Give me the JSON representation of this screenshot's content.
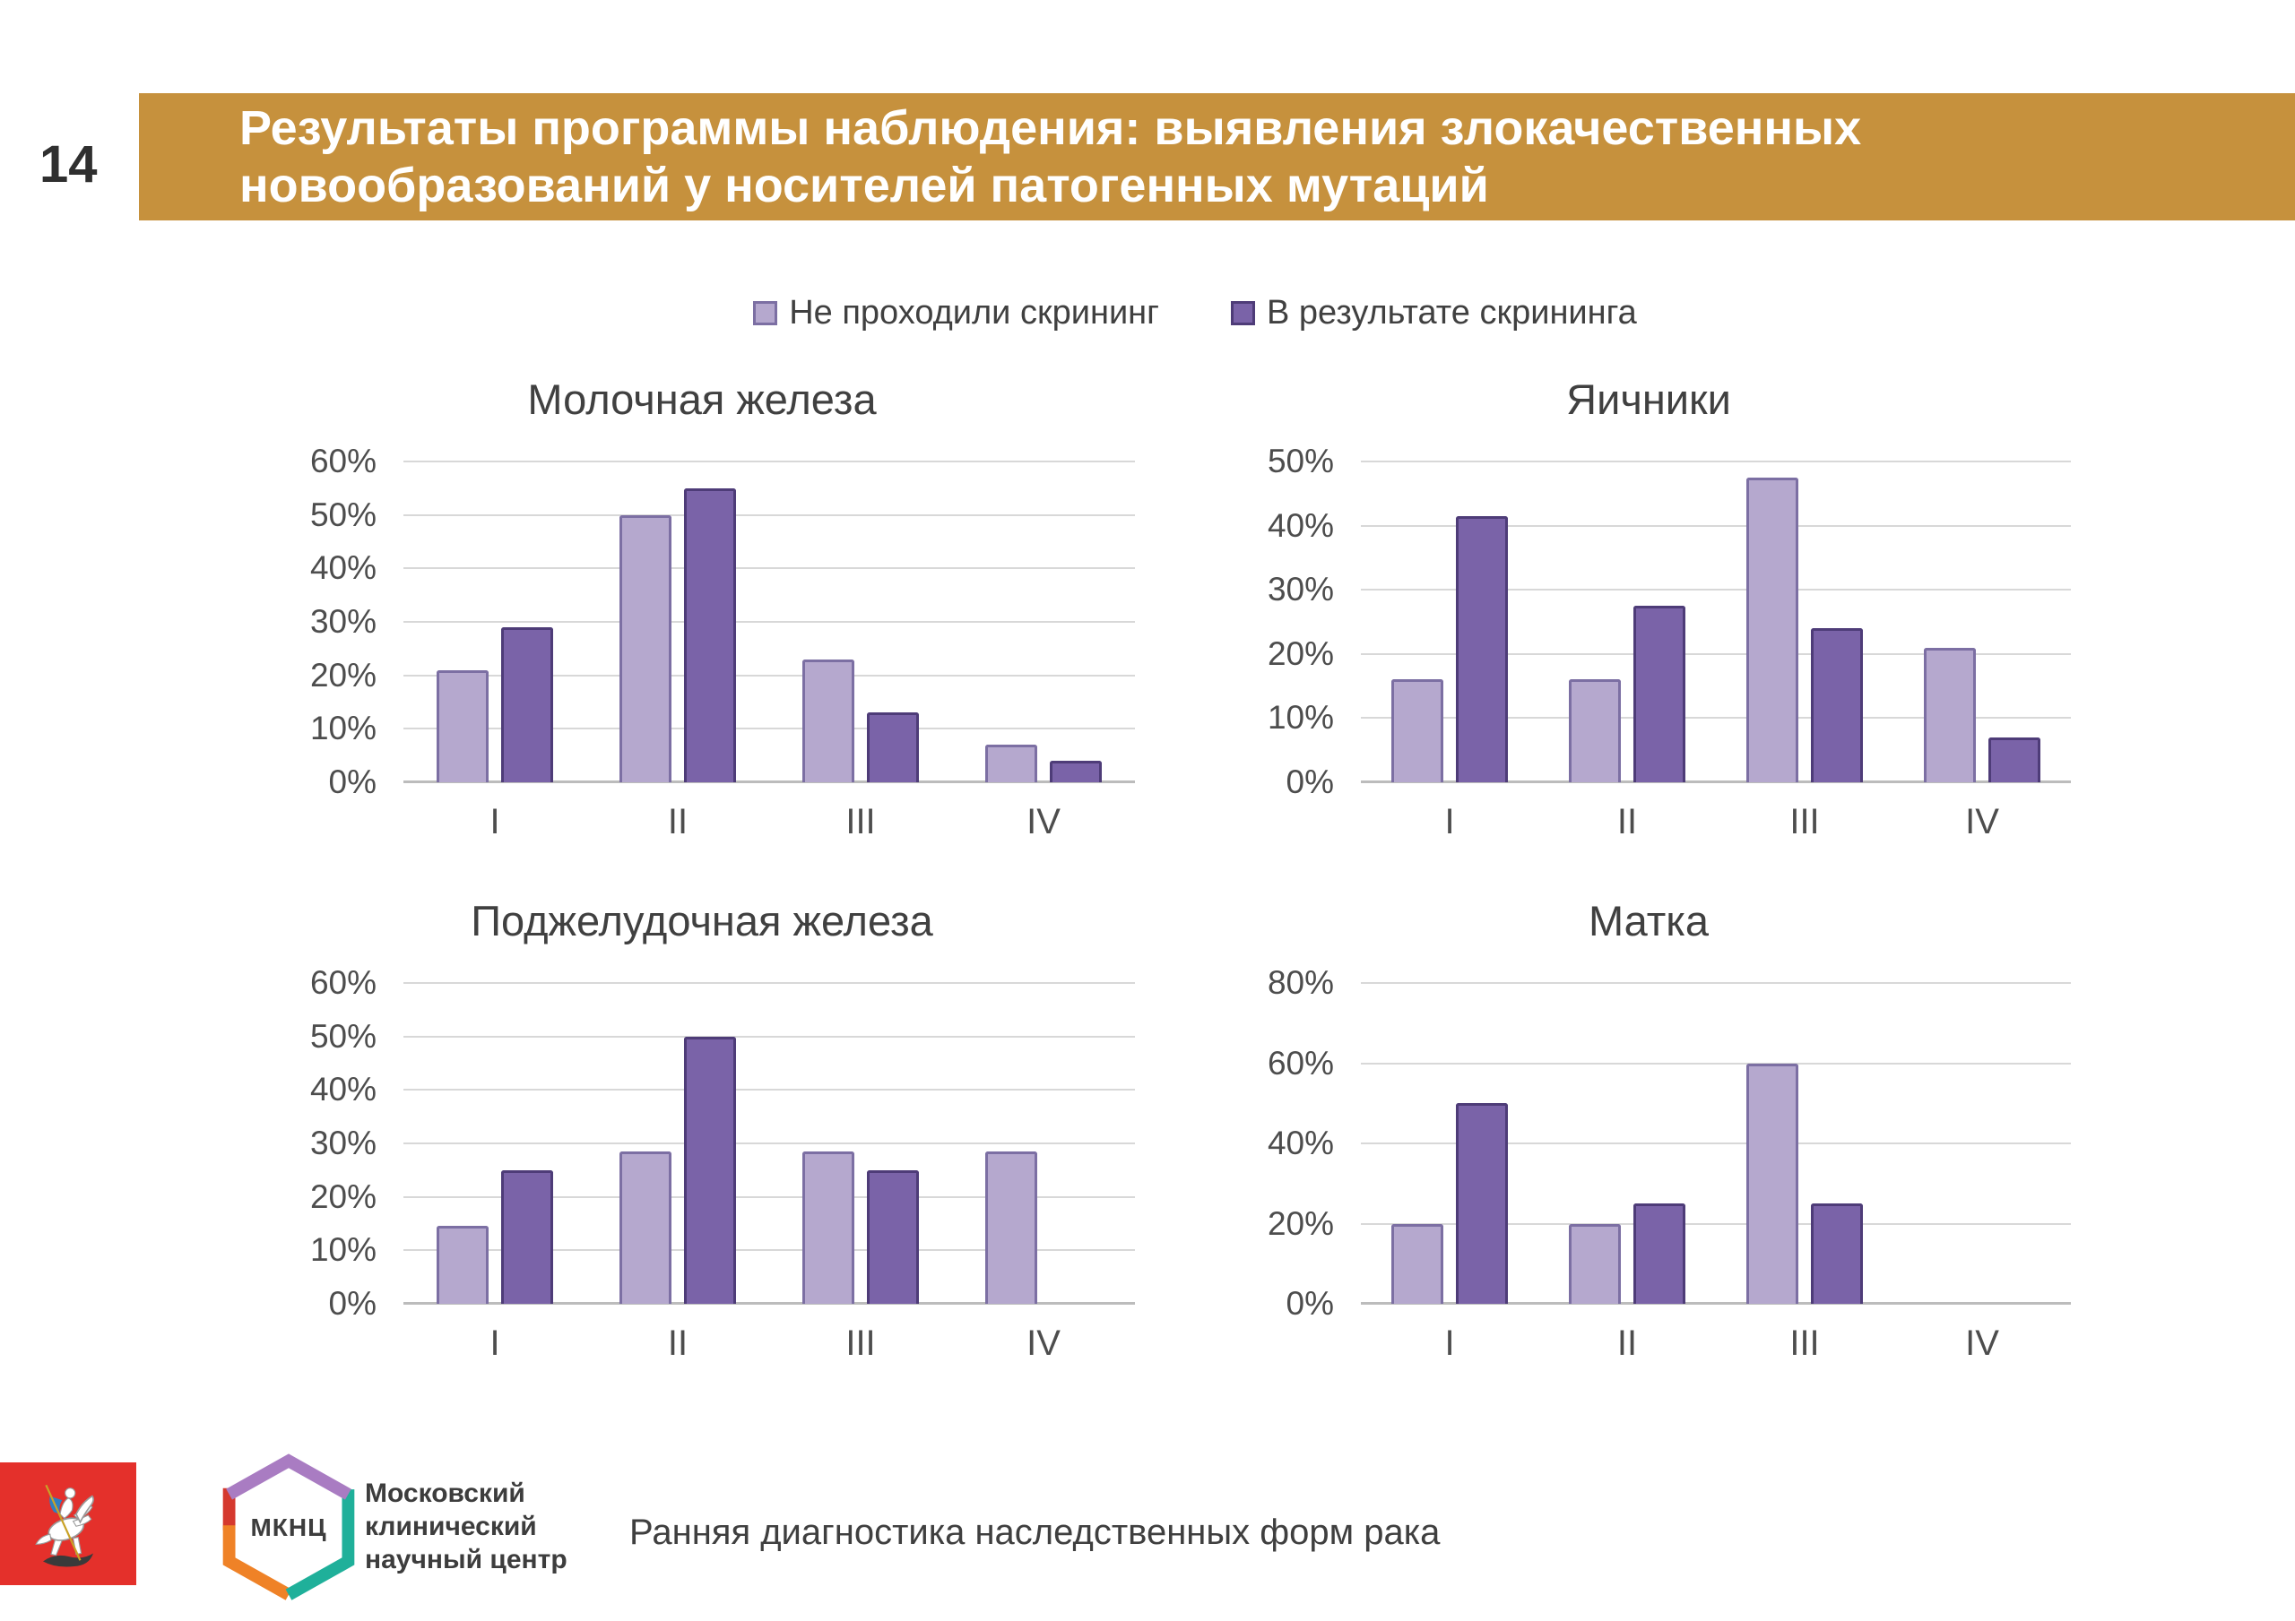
{
  "slide": {
    "number": "14",
    "title_line1": "Результаты программы наблюдения: выявления злокачественных",
    "title_line2": "новообразований у носителей патогенных мутаций"
  },
  "legend": {
    "items": [
      {
        "label": "Не проходили скрининг",
        "series": "light"
      },
      {
        "label": "В результате скрининга",
        "series": "dark"
      }
    ]
  },
  "chart_data": [
    {
      "type": "bar",
      "title": "Молочная железа",
      "categories": [
        "I",
        "II",
        "III",
        "IV"
      ],
      "series": [
        {
          "name": "Не проходили скрининг",
          "values": [
            21,
            50,
            23,
            7
          ]
        },
        {
          "name": "В результате скрининга",
          "values": [
            29,
            55,
            13,
            4
          ]
        }
      ],
      "xlabel": "",
      "ylabel": "",
      "ylim": [
        0,
        60
      ],
      "ytick_step": 10,
      "ytick_suffix": "%",
      "grid": true,
      "legend_position": "top-shared"
    },
    {
      "type": "bar",
      "title": "Яичники",
      "categories": [
        "I",
        "II",
        "III",
        "IV"
      ],
      "series": [
        {
          "name": "Не проходили скрининг",
          "values": [
            16,
            16,
            47.5,
            21
          ]
        },
        {
          "name": "В результате скрининга",
          "values": [
            41.5,
            27.5,
            24,
            7
          ]
        }
      ],
      "xlabel": "",
      "ylabel": "",
      "ylim": [
        0,
        50
      ],
      "ytick_step": 10,
      "ytick_suffix": "%",
      "grid": true,
      "legend_position": "top-shared"
    },
    {
      "type": "bar",
      "title": "Поджелудочная железа",
      "categories": [
        "I",
        "II",
        "III",
        "IV"
      ],
      "series": [
        {
          "name": "Не проходили скрининг",
          "values": [
            14.5,
            28.5,
            28.5,
            28.5
          ]
        },
        {
          "name": "В результате скрининга",
          "values": [
            25,
            50,
            25,
            0
          ]
        }
      ],
      "xlabel": "",
      "ylabel": "",
      "ylim": [
        0,
        60
      ],
      "ytick_step": 10,
      "ytick_suffix": "%",
      "grid": true,
      "legend_position": "top-shared"
    },
    {
      "type": "bar",
      "title": "Матка",
      "categories": [
        "I",
        "II",
        "III",
        "IV"
      ],
      "series": [
        {
          "name": "Не проходили скрининг",
          "values": [
            20,
            20,
            60,
            0
          ]
        },
        {
          "name": "В результате скрининга",
          "values": [
            50,
            25,
            25,
            0
          ]
        }
      ],
      "xlabel": "",
      "ylabel": "",
      "ylim": [
        0,
        80
      ],
      "ytick_step": 20,
      "ytick_suffix": "%",
      "grid": true,
      "legend_position": "top-shared"
    }
  ],
  "footer": {
    "mknc_abbr": "МКНЦ",
    "org_name_lines": [
      "Московский",
      "клинический",
      "научный центр"
    ],
    "slogan": "Ранняя диагностика наследственных форм рака"
  },
  "icons": {
    "moscow-coat-of-arms-icon": "red square with St. George on horseback (svg shape)",
    "mknc-logo-icon": "multicolor hexagon outline (svg shape)",
    "legend-swatch-light-icon": "light purple square",
    "legend-swatch-dark-icon": "dark purple square"
  },
  "colors": {
    "title_bar_bg": "#C6913D",
    "title_text": "#FFFFFF",
    "series_light_fill": "#B5A8CE",
    "series_light_border": "#7C6FA3",
    "series_dark_fill": "#7A63A8",
    "series_dark_border": "#4E3C78",
    "gridline": "#D8D8D8",
    "zero_line": "#BCBCBC",
    "chart_text": "#4D4D4D",
    "emblem_red": "#E4302B",
    "logo_purple": "#A97CC2",
    "logo_teal": "#1FB09A",
    "logo_orange": "#EF8227",
    "logo_red": "#D5392E"
  }
}
